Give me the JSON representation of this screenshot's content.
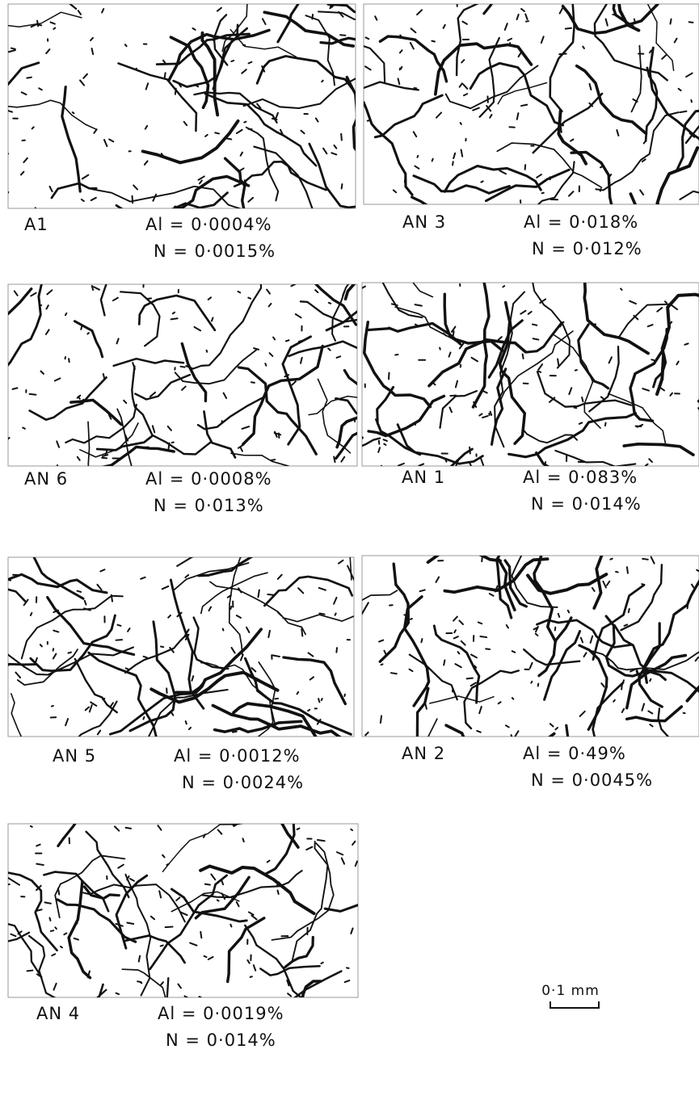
{
  "panels": [
    {
      "sample": "A1",
      "al": "Al = 0·0004%",
      "n": "N = 0·0015%"
    },
    {
      "sample": "AN 3",
      "al": "Al = 0·018%",
      "n": "N = 0·012%"
    },
    {
      "sample": "AN 6",
      "al": "Al = 0·0008%",
      "n": "N = 0·013%"
    },
    {
      "sample": "AN 1",
      "al": "Al = 0·083%",
      "n": "N = 0·014%"
    },
    {
      "sample": "AN 5",
      "al": "Al = 0·0012%",
      "n": "N = 0·0024%"
    },
    {
      "sample": "AN 2",
      "al": "Al = 0·49%",
      "n": "N = 0·0045%"
    },
    {
      "sample": "AN 4",
      "al": "Al = 0·0019%",
      "n": "N = 0·014%"
    }
  ],
  "scale_bar": "0·1 mm"
}
